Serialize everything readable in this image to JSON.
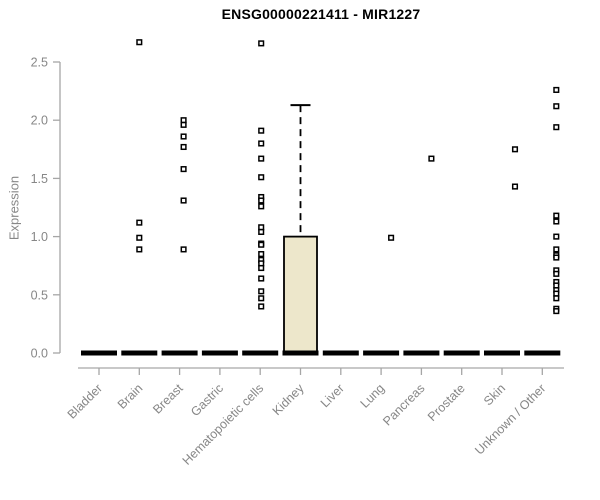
{
  "chart_data": {
    "type": "boxplot",
    "title": "ENSG00000221411 - MIR1227",
    "ylabel": "Expression",
    "xlabel": "",
    "ylim": [
      0,
      2.5
    ],
    "yticks": [
      0.0,
      0.5,
      1.0,
      1.5,
      2.0,
      2.5
    ],
    "ytick_labels": [
      "0.0",
      "0.5",
      "1.0",
      "1.5",
      "2.0",
      "2.5"
    ],
    "grid": false,
    "legend": "none",
    "marker": "open-square",
    "categories": [
      "Bladder",
      "Brain",
      "Breast",
      "Gastric",
      "Hematopoietic cells",
      "Kidney",
      "Liver",
      "Lung",
      "Pancreas",
      "Prostate",
      "Skin",
      "Unknown / Other"
    ],
    "boxes": [
      {
        "category": "Bladder",
        "median": 0,
        "q1": 0,
        "q3": 0,
        "whisker_low": 0,
        "whisker_high": 0,
        "dx": 0,
        "outliers": []
      },
      {
        "category": "Brain",
        "median": 0,
        "q1": 0,
        "q3": 0,
        "whisker_low": 0,
        "whisker_high": 0,
        "dx": 0,
        "outliers": [
          2.67,
          1.12,
          0.99,
          0.89
        ]
      },
      {
        "category": "Breast",
        "median": 0,
        "q1": 0,
        "q3": 0,
        "whisker_low": 0,
        "whisker_high": 0,
        "dx": 4,
        "outliers": [
          2.0,
          1.96,
          1.86,
          1.77,
          1.58,
          1.31,
          0.89
        ]
      },
      {
        "category": "Gastric",
        "median": 0,
        "q1": 0,
        "q3": 0,
        "whisker_low": 0,
        "whisker_high": 0,
        "dx": 0,
        "outliers": []
      },
      {
        "category": "Hematopoietic cells",
        "median": 0,
        "q1": 0,
        "q3": 0,
        "whisker_low": 0,
        "whisker_high": 0,
        "dx": 1,
        "outliers": [
          2.66,
          1.91,
          1.8,
          1.67,
          1.51,
          1.34,
          1.31,
          1.26,
          1.08,
          1.04,
          0.94,
          0.93,
          0.85,
          0.8,
          0.77,
          0.73,
          0.64,
          0.53,
          0.47,
          0.4
        ]
      },
      {
        "category": "Kidney",
        "median": 0,
        "q1": 0,
        "q3": 1.0,
        "whisker_low": 0,
        "whisker_high": 2.13,
        "dx": 0,
        "outliers": []
      },
      {
        "category": "Liver",
        "median": 0,
        "q1": 0,
        "q3": 0,
        "whisker_low": 0,
        "whisker_high": 0,
        "dx": 0,
        "outliers": []
      },
      {
        "category": "Lung",
        "median": 0,
        "q1": 0,
        "q3": 0,
        "whisker_low": 0,
        "whisker_high": 0,
        "dx": 10,
        "outliers": [
          0.99
        ]
      },
      {
        "category": "Pancreas",
        "median": 0,
        "q1": 0,
        "q3": 0,
        "whisker_low": 0,
        "whisker_high": 0,
        "dx": 10,
        "outliers": [
          1.67
        ]
      },
      {
        "category": "Prostate",
        "median": 0,
        "q1": 0,
        "q3": 0,
        "whisker_low": 0,
        "whisker_high": 0,
        "dx": 0,
        "outliers": []
      },
      {
        "category": "Skin",
        "median": 0,
        "q1": 0,
        "q3": 0,
        "whisker_low": 0,
        "whisker_high": 0,
        "dx": 13,
        "outliers": [
          1.75,
          1.43
        ]
      },
      {
        "category": "Unknown / Other",
        "median": 0,
        "q1": 0,
        "q3": 0,
        "whisker_low": 0,
        "whisker_high": 0,
        "dx": 14,
        "outliers": [
          2.26,
          2.12,
          1.94,
          1.18,
          1.13,
          1.0,
          0.89,
          0.84,
          0.82,
          0.71,
          0.68,
          0.61,
          0.58,
          0.54,
          0.51,
          0.47,
          0.38,
          0.36
        ]
      }
    ],
    "colors": {
      "box_fill": "#EDE7CB",
      "box_border": "#000000",
      "median": "#000000",
      "outlier": "#000000",
      "whisker": "#000000",
      "axis_line": "#A6A6A6",
      "tick_text": "#878787",
      "title_text": "#000000",
      "background": "#FFFFFF"
    }
  }
}
